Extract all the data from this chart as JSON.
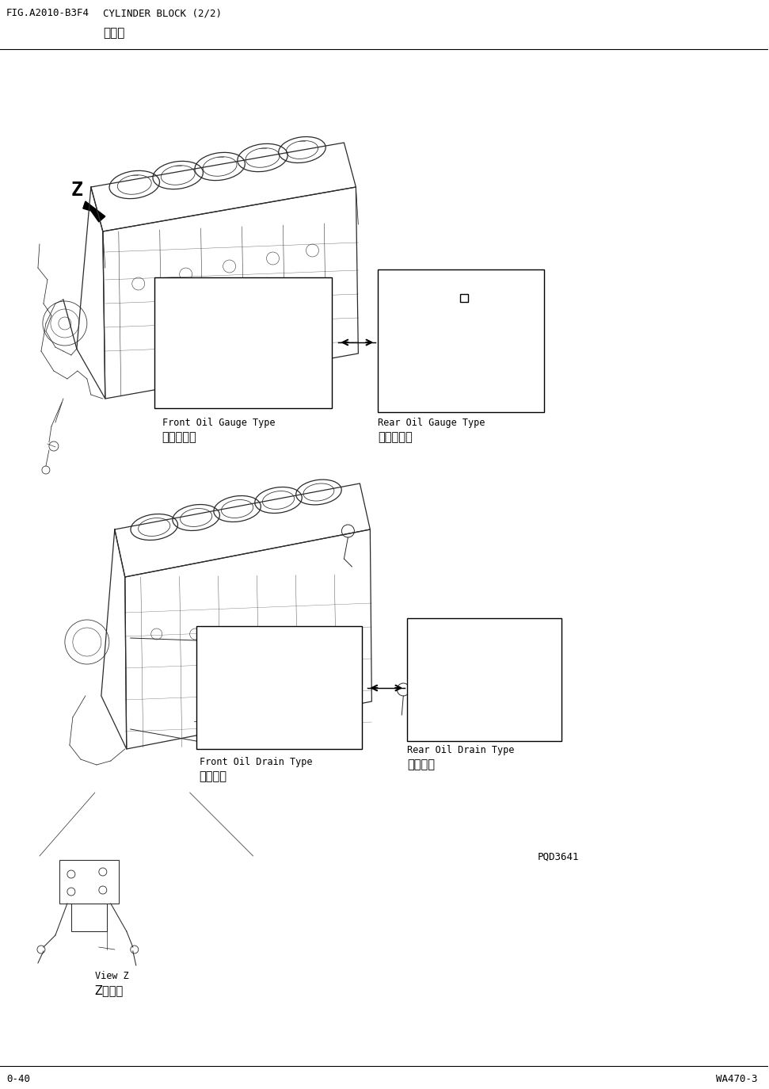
{
  "page_title_left": "FIG.A2010-B3F4",
  "page_title_right": "CYLINDER BLOCK (2/2)",
  "page_subtitle": "气缸体",
  "background_color": "#ffffff",
  "text_color": "#000000",
  "footer_left": "0-40",
  "footer_right": "WA470-3",
  "pqd_label": "PQD3641",
  "label_front_gauge_en": "Front Oil Gauge Type",
  "label_front_gauge_cn": "前油位计式",
  "label_rear_gauge_en": "Rear Oil Gauge Type",
  "label_rear_gauge_cn": "后油位计式",
  "label_front_drain_en": "Front Oil Drain Type",
  "label_front_drain_cn": "前排油式",
  "label_rear_drain_en": "Rear Oil Drain Type",
  "label_rear_drain_cn": "后排油式",
  "label_view_z_en": "View Z",
  "label_view_z_cn": "Z向视图",
  "line_color": "#1a1a1a",
  "draw_color": "#2a2a2a"
}
